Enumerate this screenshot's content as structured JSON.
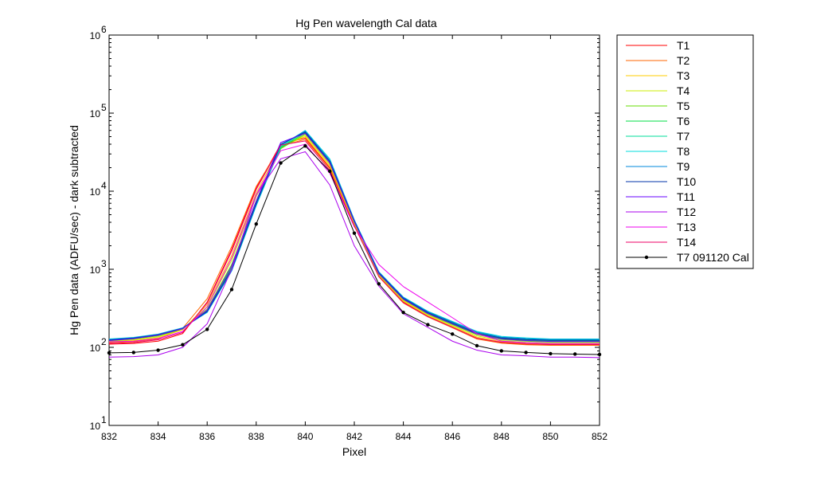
{
  "chart_data": {
    "type": "line",
    "title": "Hg Pen wavelength Cal data",
    "xlabel": "Pixel",
    "ylabel": "Hg Pen data (ADFU/sec) - dark subtracted",
    "xlim": [
      832,
      852
    ],
    "ylim": [
      10,
      1000000
    ],
    "yscale": "log",
    "x_ticks": [
      "832",
      "834",
      "836",
      "838",
      "840",
      "842",
      "844",
      "846",
      "848",
      "850",
      "852"
    ],
    "y_ticks": [
      {
        "base": "10",
        "exp": "1",
        "value": 10
      },
      {
        "base": "10",
        "exp": "2",
        "value": 100
      },
      {
        "base": "10",
        "exp": "3",
        "value": 1000
      },
      {
        "base": "10",
        "exp": "4",
        "value": 10000
      },
      {
        "base": "10",
        "exp": "5",
        "value": 100000
      },
      {
        "base": "10",
        "exp": "6",
        "value": 1000000
      }
    ],
    "grid": false,
    "legend_position": "outside-right",
    "x": [
      832,
      833,
      834,
      835,
      836,
      837,
      838,
      839,
      840,
      841,
      842,
      843,
      844,
      845,
      846,
      847,
      848,
      849,
      850,
      851,
      852
    ],
    "series": [
      {
        "name": "T1",
        "color": "#ff0000",
        "marker": false,
        "values": [
          110,
          112,
          120,
          150,
          380,
          1800,
          11000,
          40000,
          48000,
          20000,
          3800,
          820,
          380,
          250,
          180,
          130,
          115,
          110,
          108,
          108,
          108
        ]
      },
      {
        "name": "T2",
        "color": "#ff6600",
        "marker": false,
        "values": [
          115,
          118,
          128,
          175,
          420,
          1950,
          11500,
          38000,
          46000,
          19500,
          3700,
          800,
          370,
          245,
          178,
          128,
          113,
          108,
          106,
          106,
          106
        ]
      },
      {
        "name": "T3",
        "color": "#ffcc00",
        "marker": false,
        "values": [
          118,
          122,
          132,
          168,
          350,
          1500,
          9500,
          37000,
          50000,
          21000,
          3800,
          830,
          390,
          255,
          185,
          135,
          118,
          112,
          110,
          110,
          110
        ]
      },
      {
        "name": "T4",
        "color": "#ccee00",
        "marker": false,
        "values": [
          120,
          125,
          136,
          170,
          330,
          1300,
          8500,
          36000,
          52000,
          22000,
          3900,
          850,
          400,
          262,
          190,
          140,
          122,
          116,
          113,
          113,
          113
        ]
      },
      {
        "name": "T5",
        "color": "#66dd00",
        "marker": false,
        "values": [
          122,
          128,
          140,
          172,
          310,
          1150,
          7500,
          35000,
          54000,
          23000,
          4000,
          870,
          410,
          268,
          196,
          145,
          126,
          120,
          117,
          117,
          117
        ]
      },
      {
        "name": "T6",
        "color": "#00dd44",
        "marker": false,
        "values": [
          124,
          130,
          143,
          174,
          295,
          1050,
          7000,
          36000,
          56000,
          24000,
          4100,
          890,
          420,
          275,
          202,
          150,
          130,
          124,
          121,
          121,
          121
        ]
      },
      {
        "name": "T7",
        "color": "#00dd99",
        "marker": false,
        "values": [
          126,
          132,
          146,
          176,
          285,
          980,
          6600,
          37000,
          58000,
          25000,
          4200,
          910,
          430,
          282,
          208,
          155,
          134,
          128,
          125,
          125,
          125
        ]
      },
      {
        "name": "T8",
        "color": "#00dddd",
        "marker": false,
        "values": [
          128,
          134,
          148,
          178,
          280,
          950,
          6500,
          38000,
          60000,
          26000,
          4300,
          930,
          440,
          290,
          215,
          160,
          138,
          132,
          128,
          128,
          128
        ]
      },
      {
        "name": "T9",
        "color": "#0088dd",
        "marker": false,
        "values": [
          126,
          133,
          147,
          177,
          282,
          960,
          6700,
          39000,
          59000,
          25000,
          4250,
          920,
          435,
          286,
          212,
          157,
          135,
          129,
          126,
          126,
          126
        ]
      },
      {
        "name": "T10",
        "color": "#0033aa",
        "marker": false,
        "values": [
          124,
          131,
          145,
          175,
          290,
          1000,
          7000,
          40000,
          57000,
          24000,
          4150,
          900,
          425,
          278,
          205,
          152,
          132,
          126,
          123,
          123,
          123
        ]
      },
      {
        "name": "T11",
        "color": "#6600ff",
        "marker": false,
        "values": [
          122,
          129,
          143,
          173,
          300,
          1100,
          7500,
          42000,
          55000,
          23000,
          4050,
          880,
          415,
          271,
          199,
          148,
          128,
          122,
          119,
          119,
          119
        ]
      },
      {
        "name": "T12",
        "color": "#aa00ee",
        "marker": false,
        "values": [
          75,
          76,
          80,
          100,
          200,
          1000,
          9000,
          26000,
          32000,
          12000,
          2000,
          610,
          270,
          180,
          120,
          92,
          80,
          78,
          75,
          75,
          74
        ]
      },
      {
        "name": "T13",
        "color": "#ee00ee",
        "marker": false,
        "values": [
          118,
          120,
          130,
          160,
          330,
          1400,
          9000,
          33000,
          40000,
          17000,
          3500,
          1150,
          600,
          380,
          240,
          150,
          120,
          115,
          112,
          112,
          112
        ]
      },
      {
        "name": "T14",
        "color": "#ee0066",
        "marker": false,
        "values": [
          112,
          115,
          125,
          155,
          370,
          1700,
          10500,
          39000,
          44000,
          18500,
          3600,
          810,
          375,
          248,
          181,
          131,
          116,
          111,
          109,
          109,
          109
        ]
      },
      {
        "name": "T7 091120 Cal",
        "color": "#000000",
        "marker": true,
        "values": [
          85,
          86,
          92,
          108,
          170,
          550,
          3800,
          23000,
          38000,
          18000,
          2900,
          650,
          280,
          195,
          148,
          105,
          90,
          86,
          83,
          82,
          81
        ]
      }
    ]
  }
}
